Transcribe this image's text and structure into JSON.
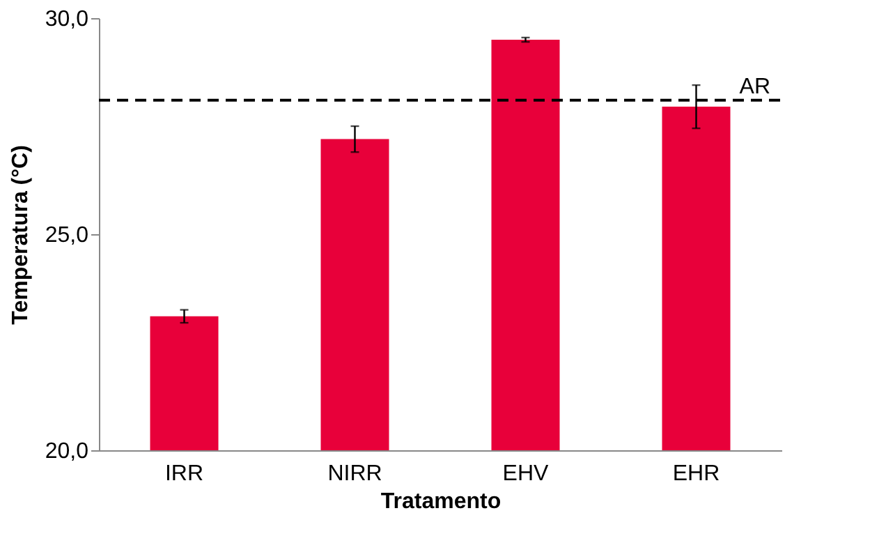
{
  "chart_data": {
    "type": "bar",
    "xlabel": "Tratamento",
    "ylabel": "Temperatura (°C)",
    "categories": [
      "IRR",
      "NIRR",
      "EHV",
      "EHR"
    ],
    "series": [
      {
        "color": "#e8003a",
        "values": [
          23.1,
          27.2,
          29.5,
          27.95
        ],
        "errors": [
          0.15,
          0.3,
          0.05,
          0.5
        ]
      }
    ],
    "ylim": [
      20,
      30
    ],
    "yticks": [
      {
        "value": 20,
        "label": "20,0"
      },
      {
        "value": 25,
        "label": "25,0"
      },
      {
        "value": 30,
        "label": "30,0"
      }
    ],
    "ref_lines": [
      {
        "axis": "y",
        "value": 28.1,
        "label": "AR",
        "line_style": "dashed",
        "color": "#000000"
      }
    ],
    "grid": false
  }
}
